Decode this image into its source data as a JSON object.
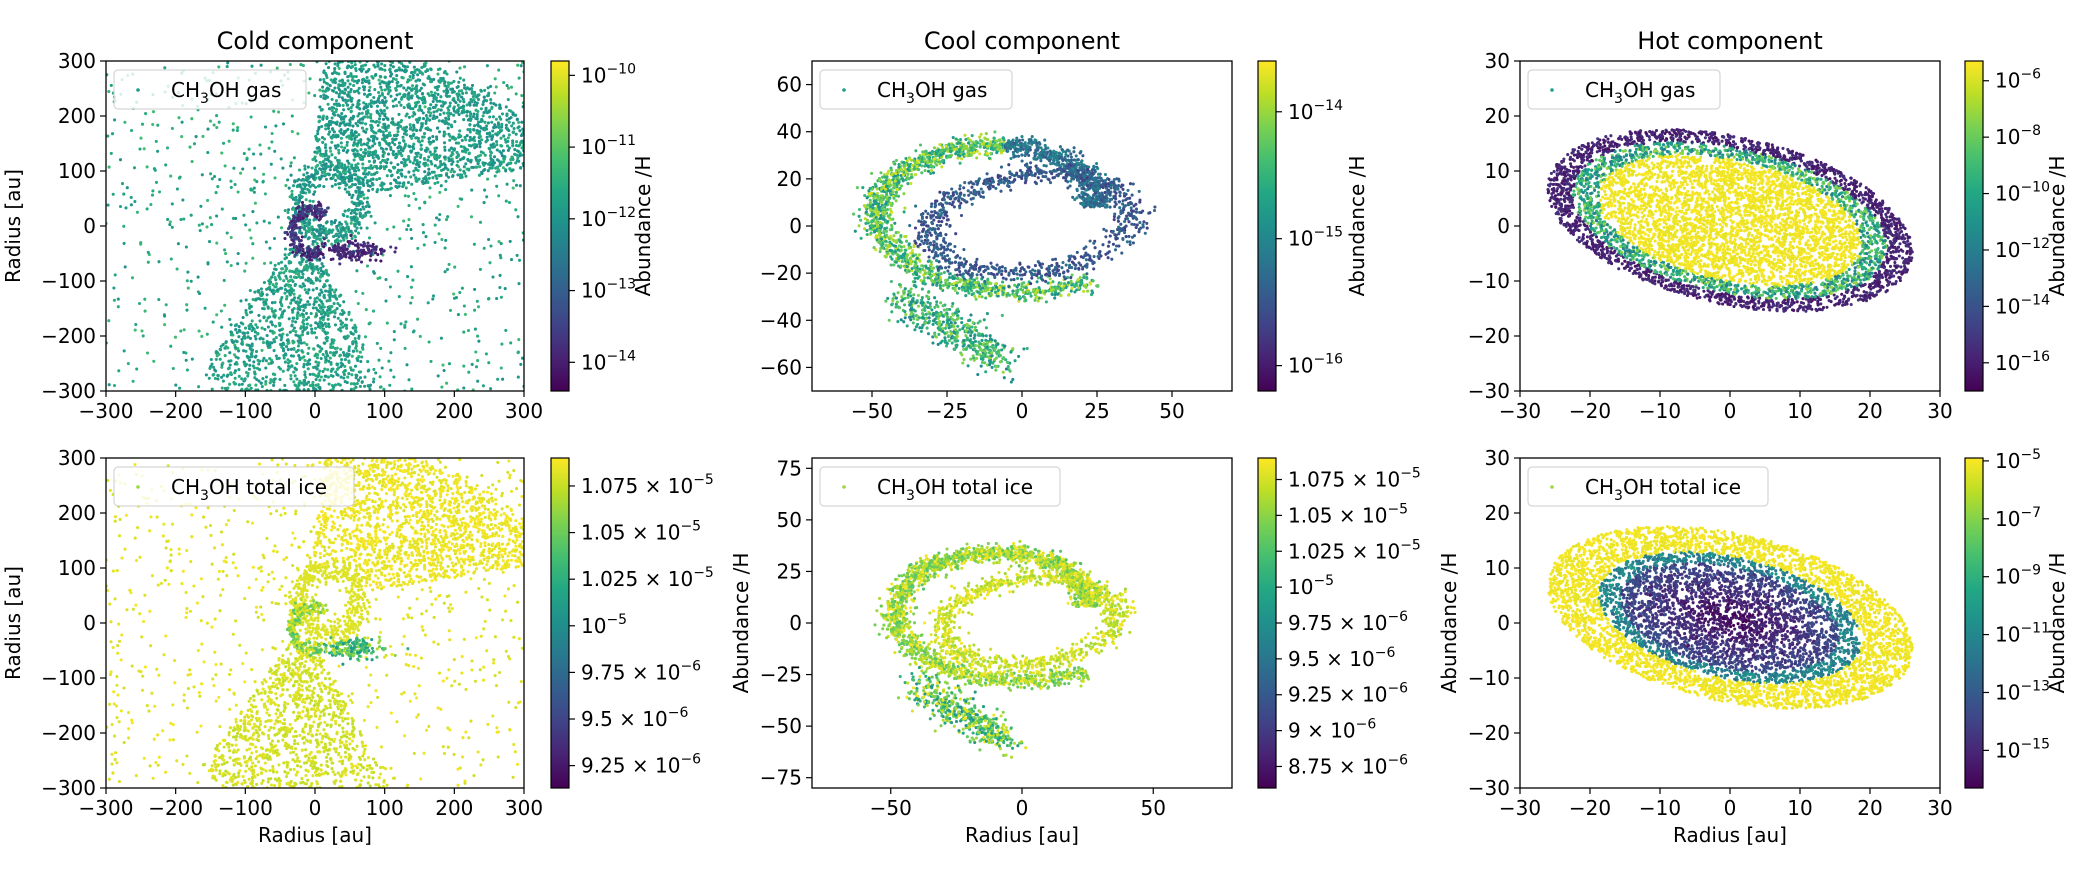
{
  "chart_data": [
    {
      "type": "scatter",
      "id": "cold-gas",
      "title": "Cold component",
      "xlabel": "",
      "ylabel": "Radius [au]",
      "xlim": [
        -300,
        300
      ],
      "ylim": [
        -300,
        300
      ],
      "xticks": [
        -300,
        -200,
        -100,
        0,
        100,
        200,
        300
      ],
      "yticks": [
        -300,
        -200,
        -100,
        0,
        100,
        200,
        300
      ],
      "legend": "CH3OH gas",
      "legend_position": "top-left",
      "shape": "cold",
      "scale": 300,
      "palette": "cold_gas",
      "colorbar": {
        "label": "Abundance /H",
        "scale": "log",
        "range": [
          -14.4,
          -9.8
        ],
        "ticks": [
          {
            "v": -10,
            "label": "10^-10"
          },
          {
            "v": -11,
            "label": "10^-11"
          },
          {
            "v": -12,
            "label": "10^-12"
          },
          {
            "v": -13,
            "label": "10^-13"
          },
          {
            "v": -14,
            "label": "10^-14"
          }
        ]
      }
    },
    {
      "type": "scatter",
      "id": "cool-gas",
      "title": "Cool component",
      "xlabel": "",
      "ylabel": "",
      "xlim": [
        -70,
        70
      ],
      "ylim": [
        -70,
        70
      ],
      "xticks": [
        -50,
        -25,
        0,
        25,
        50
      ],
      "yticks": [
        -60,
        -40,
        -20,
        0,
        20,
        40,
        60
      ],
      "legend": "CH3OH gas",
      "legend_position": "top-left",
      "shape": "cool",
      "scale": 1,
      "palette": "cool_gas",
      "colorbar": {
        "label": "Abundance /H",
        "scale": "log",
        "range": [
          -16.2,
          -13.6
        ],
        "ticks": [
          {
            "v": -14,
            "label": "10^-14"
          },
          {
            "v": -15,
            "label": "10^-15"
          },
          {
            "v": -16,
            "label": "10^-16"
          }
        ]
      }
    },
    {
      "type": "scatter",
      "id": "hot-gas",
      "title": "Hot component",
      "xlabel": "",
      "ylabel": "",
      "xlim": [
        -30,
        30
      ],
      "ylim": [
        -30,
        30
      ],
      "xticks": [
        -30,
        -20,
        -10,
        0,
        10,
        20,
        30
      ],
      "yticks": [
        -30,
        -20,
        -10,
        0,
        10,
        20,
        30
      ],
      "legend": "CH3OH gas",
      "legend_position": "top-left",
      "shape": "hot",
      "scale": 1,
      "palette": "hot_gas",
      "colorbar": {
        "label": "Abundance /H",
        "scale": "log",
        "range": [
          -17,
          -5.3
        ],
        "ticks": [
          {
            "v": -6,
            "label": "10^-6"
          },
          {
            "v": -8,
            "label": "10^-8"
          },
          {
            "v": -10,
            "label": "10^-10"
          },
          {
            "v": -12,
            "label": "10^-12"
          },
          {
            "v": -14,
            "label": "10^-14"
          },
          {
            "v": -16,
            "label": "10^-16"
          }
        ]
      }
    },
    {
      "type": "scatter",
      "id": "cold-ice",
      "title": "",
      "xlabel": "Radius [au]",
      "ylabel": "Radius [au]",
      "xlim": [
        -300,
        300
      ],
      "ylim": [
        -300,
        300
      ],
      "xticks": [
        -300,
        -200,
        -100,
        0,
        100,
        200,
        300
      ],
      "yticks": [
        -300,
        -200,
        -100,
        0,
        100,
        200,
        300
      ],
      "legend": "CH3OH total ice",
      "legend_position": "top-left",
      "shape": "cold",
      "scale": 300,
      "palette": "cold_ice",
      "colorbar": {
        "label": "",
        "scale": "linear",
        "range": [
          9.13e-06,
          1.09e-05
        ],
        "ticks": [
          {
            "v": 1.075e-05,
            "label": "1.075 × 10^-5"
          },
          {
            "v": 1.05e-05,
            "label": "1.05 × 10^-5"
          },
          {
            "v": 1.025e-05,
            "label": "1.025 × 10^-5"
          },
          {
            "v": 1e-05,
            "label": "10^-5"
          },
          {
            "v": 9.75e-06,
            "label": "9.75 × 10^-6"
          },
          {
            "v": 9.5e-06,
            "label": "9.5 × 10^-6"
          },
          {
            "v": 9.25e-06,
            "label": "9.25 × 10^-6"
          }
        ]
      }
    },
    {
      "type": "scatter",
      "id": "cool-ice",
      "title": "",
      "xlabel": "Radius [au]",
      "ylabel": "Abundance /H",
      "xlim": [
        -80,
        80
      ],
      "ylim": [
        -80,
        80
      ],
      "xticks": [
        -50,
        0,
        50
      ],
      "yticks": [
        -75,
        -50,
        -25,
        0,
        25,
        50,
        75
      ],
      "legend": "CH3OH total ice",
      "legend_position": "top-left",
      "shape": "cool",
      "scale": 1,
      "palette": "cool_ice",
      "colorbar": {
        "label": "",
        "scale": "linear",
        "range": [
          8.6e-06,
          1.09e-05
        ],
        "ticks": [
          {
            "v": 1.075e-05,
            "label": "1.075 × 10^-5"
          },
          {
            "v": 1.05e-05,
            "label": "1.05 × 10^-5"
          },
          {
            "v": 1.025e-05,
            "label": "1.025 × 10^-5"
          },
          {
            "v": 1e-05,
            "label": "10^-5"
          },
          {
            "v": 9.75e-06,
            "label": "9.75 × 10^-6"
          },
          {
            "v": 9.5e-06,
            "label": "9.5 × 10^-6"
          },
          {
            "v": 9.25e-06,
            "label": "9.25 × 10^-6"
          },
          {
            "v": 9e-06,
            "label": "9 × 10^-6"
          },
          {
            "v": 8.75e-06,
            "label": "8.75 × 10^-6"
          }
        ]
      }
    },
    {
      "type": "scatter",
      "id": "hot-ice",
      "title": "",
      "xlabel": "Radius [au]",
      "ylabel": "Abundance /H",
      "xlim": [
        -30,
        30
      ],
      "ylim": [
        -30,
        30
      ],
      "xticks": [
        -30,
        -20,
        -10,
        0,
        10,
        20,
        30
      ],
      "yticks": [
        -30,
        -20,
        -10,
        0,
        10,
        20,
        30
      ],
      "legend": "CH3OH total ice",
      "legend_position": "top-left",
      "shape": "hot",
      "scale": 1,
      "palette": "hot_ice",
      "colorbar": {
        "label": "Abundance /H",
        "scale": "log",
        "range": [
          -16.3,
          -4.9
        ],
        "ticks": [
          {
            "v": -5,
            "label": "10^-5"
          },
          {
            "v": -7,
            "label": "10^-7"
          },
          {
            "v": -9,
            "label": "10^-9"
          },
          {
            "v": -11,
            "label": "10^-11"
          },
          {
            "v": -13,
            "label": "10^-13"
          },
          {
            "v": -15,
            "label": "10^-15"
          }
        ]
      }
    }
  ]
}
